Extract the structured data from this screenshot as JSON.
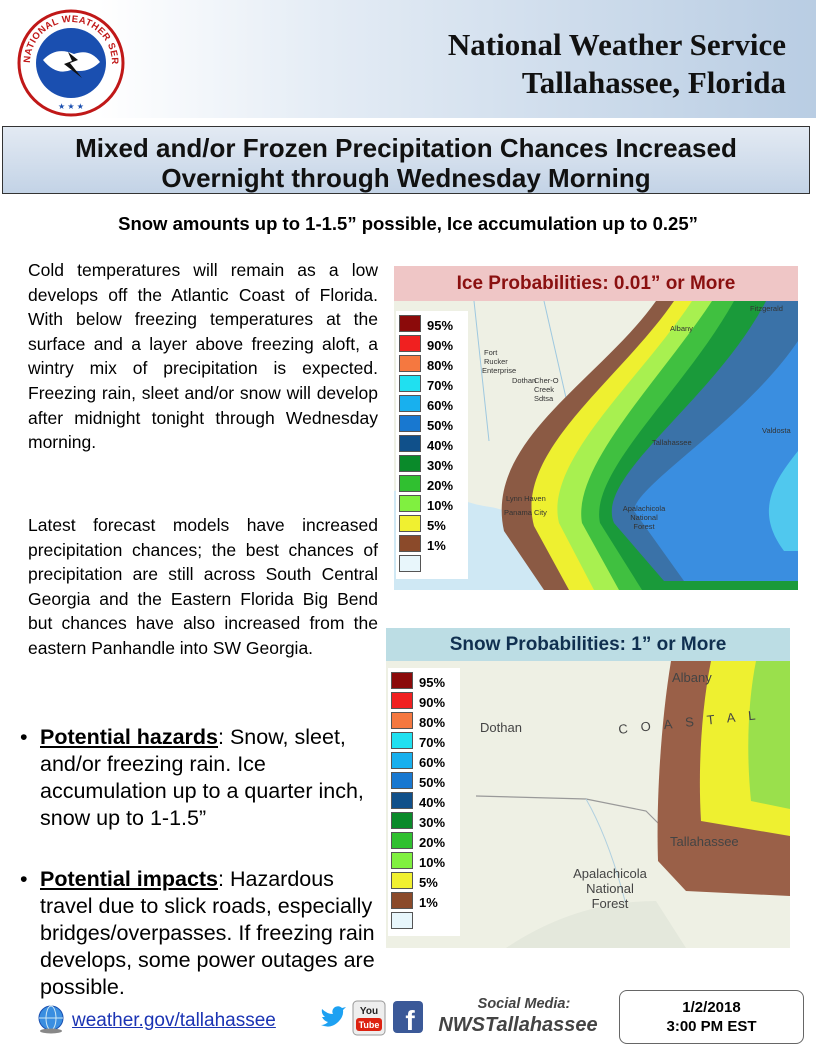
{
  "header": {
    "logo_text": "NATIONAL WEATHER SERVICE",
    "org_line1": "National Weather Service",
    "org_line2": "Tallahassee, Florida"
  },
  "banner": {
    "line1": "Mixed and/or Frozen Precipitation Chances Increased",
    "line2": "Overnight through Wednesday Morning"
  },
  "subhead": "Snow amounts up to 1-1.5” possible, Ice accumulation up to 0.25”",
  "body": {
    "para1": "Cold temperatures will remain as a low develops off the Atlantic Coast of Florida. With below freezing temperatures at the surface and a layer above freezing aloft, a wintry mix of precipitation is expected. Freezing rain, sleet and/or snow will develop after midnight  tonight through  Wednesday morning.",
    "para2": "Latest forecast models have increased precipitation chances; the best chances of precipitation are still across South Central Georgia and the Eastern Florida Big Bend but chances have also increased from the eastern Panhandle into SW Georgia.",
    "bullets": [
      {
        "label": "Potential hazards",
        "text": ": Snow, sleet, and/or freezing rain. Ice accumulation up to a quarter inch, snow up to 1-1.5”"
      },
      {
        "label": "Potential impacts",
        "text": ": Hazardous travel due to slick roads, especially bridges/overpasses. If freezing rain develops, some power outages are possible."
      }
    ]
  },
  "ice_map": {
    "title": "Ice Probabilities: 0.01” or More",
    "places": [
      "Fitzgerald",
      "Albany",
      "Fort Rucker",
      "Enterprise",
      "Dothan",
      "Cher-O Creek Sdtsa",
      "Valdosta",
      "Tallahassee",
      "Lynn Haven",
      "Panama City",
      "Apalachicola National Forest"
    ]
  },
  "snow_map": {
    "title": "Snow Probabilities: 1” or More",
    "places": [
      "Albany",
      "Dothan",
      "COASTAL",
      "Tallahassee",
      "Apalachicola National Forest"
    ]
  },
  "legend": [
    {
      "label": "95%",
      "color": "#8b0a0a"
    },
    {
      "label": "90%",
      "color": "#f02020"
    },
    {
      "label": "80%",
      "color": "#f57840"
    },
    {
      "label": "70%",
      "color": "#20e0f0"
    },
    {
      "label": "60%",
      "color": "#18b0ee"
    },
    {
      "label": "50%",
      "color": "#1878d0"
    },
    {
      "label": "40%",
      "color": "#10508a"
    },
    {
      "label": "30%",
      "color": "#0a8a2a"
    },
    {
      "label": "20%",
      "color": "#30c030"
    },
    {
      "label": "10%",
      "color": "#80f040"
    },
    {
      "label": "5%",
      "color": "#f0f030"
    },
    {
      "label": "1%",
      "color": "#8b4a2a"
    },
    {
      "label": "",
      "color": "#e8f6fb"
    }
  ],
  "footer": {
    "website": "weather.gov/tallahassee",
    "social_label": "Social Media:",
    "social_handle": "NWSTallahassee",
    "date": "1/2/2018",
    "time": "3:00 PM EST"
  },
  "icons": [
    "nws-logo",
    "globe-icon",
    "twitter-icon",
    "youtube-icon",
    "facebook-icon"
  ]
}
